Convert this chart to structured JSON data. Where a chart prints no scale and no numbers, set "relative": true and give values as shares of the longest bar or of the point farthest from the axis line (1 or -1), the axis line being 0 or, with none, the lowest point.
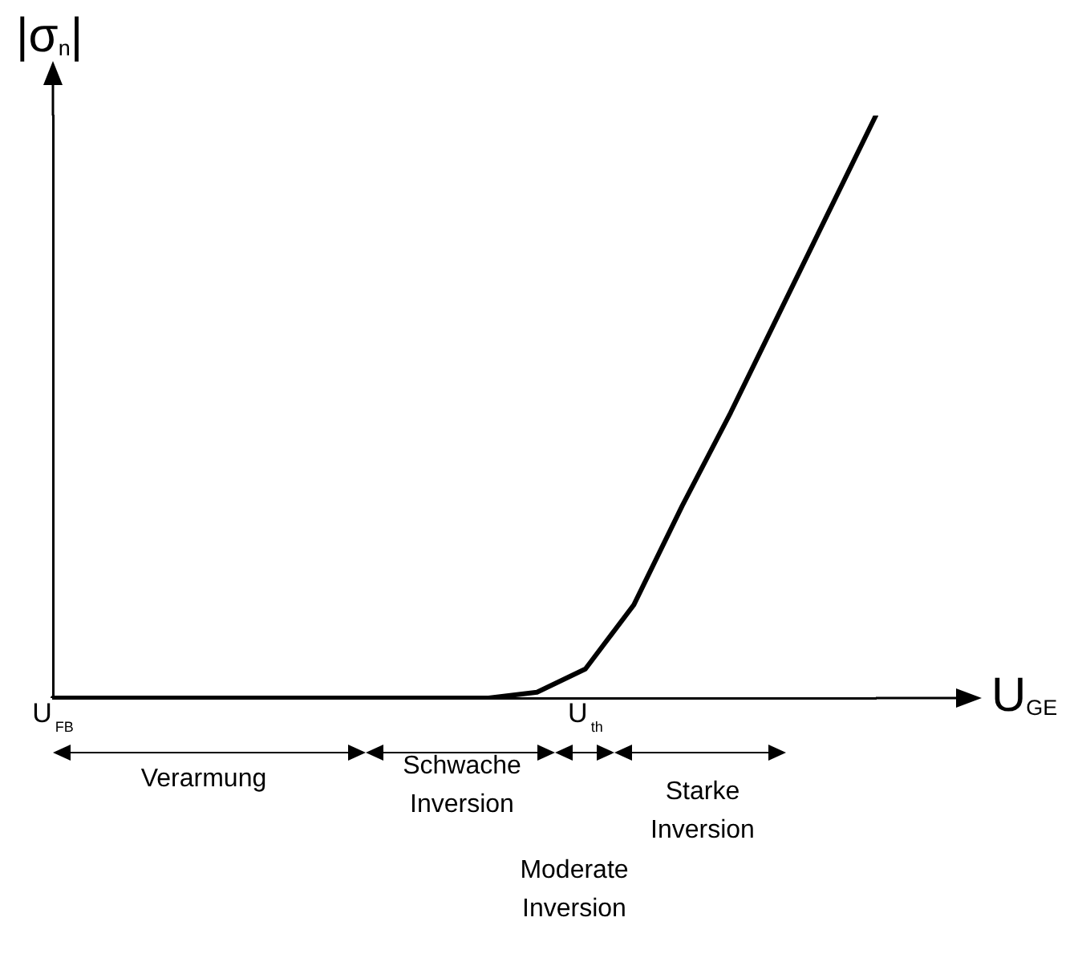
{
  "chart_data": {
    "type": "line",
    "relative": true,
    "xlabel": "U$_{GE}$",
    "ylabel": "|σ$_{n}$|",
    "categories": [
      "U$_{FB}$",
      null,
      null,
      null,
      null,
      null,
      null,
      null,
      null,
      null,
      null,
      "U$_{th}$",
      null,
      null,
      null,
      null,
      null,
      null
    ],
    "series": [
      {
        "color": "#000000",
        "values": [
          0,
          0,
          0,
          0,
          0,
          0,
          0,
          0,
          0,
          0,
          0.01,
          0.05,
          0.16,
          0.33,
          0.49,
          0.66,
          0.83,
          1
        ]
      }
    ],
    "marker": "none",
    "line_style": "solid",
    "grid": false,
    "legend": false,
    "annotations": [
      "Verarmung",
      "Schwache Inversion",
      "Moderate Inversion",
      "Starke Inversion"
    ]
  }
}
